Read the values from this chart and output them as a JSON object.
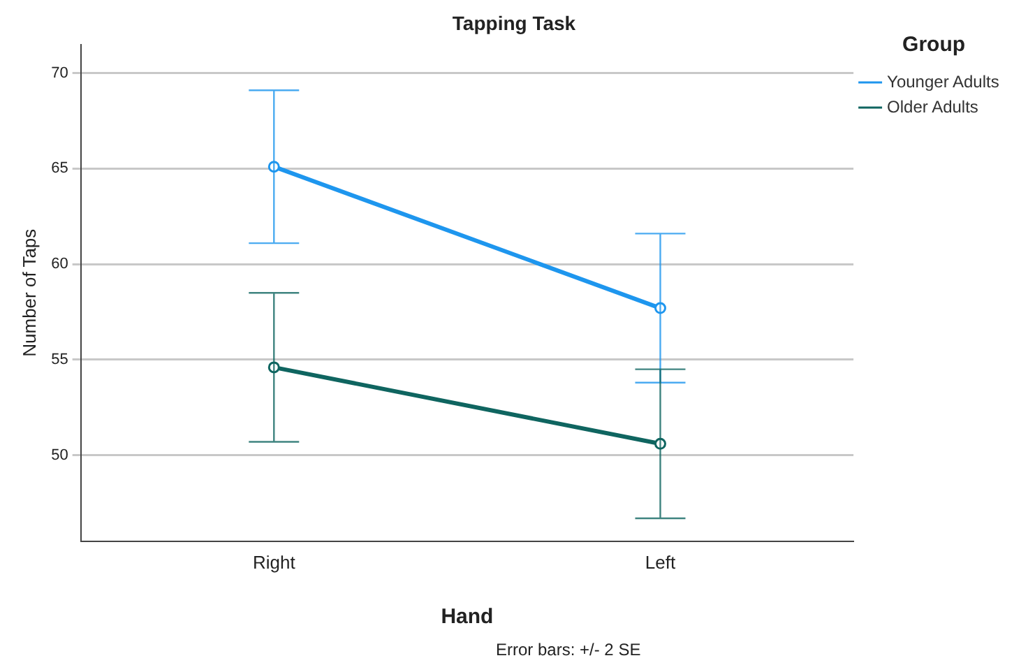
{
  "chart_data": {
    "type": "line",
    "title": "Tapping Task",
    "xlabel": "Hand",
    "ylabel": "Number of Taps",
    "legend_title": "Group",
    "categories": [
      "Right",
      "Left"
    ],
    "series": [
      {
        "name": "Younger Adults",
        "color": "#1e96ee",
        "values": [
          65.1,
          57.7
        ],
        "errors": [
          4.0,
          3.9
        ]
      },
      {
        "name": "Older Adults",
        "color": "#0f6560",
        "values": [
          54.6,
          50.6
        ],
        "errors": [
          3.9,
          3.9
        ]
      }
    ],
    "ylim": [
      45.5,
      71.5
    ],
    "yticks": [
      50,
      55,
      60,
      65,
      70
    ],
    "grid": "y",
    "legend": "top right",
    "marker": "circle",
    "line_style": "solid",
    "annotations": [
      "Error bars: +/- 2 SE"
    ]
  }
}
